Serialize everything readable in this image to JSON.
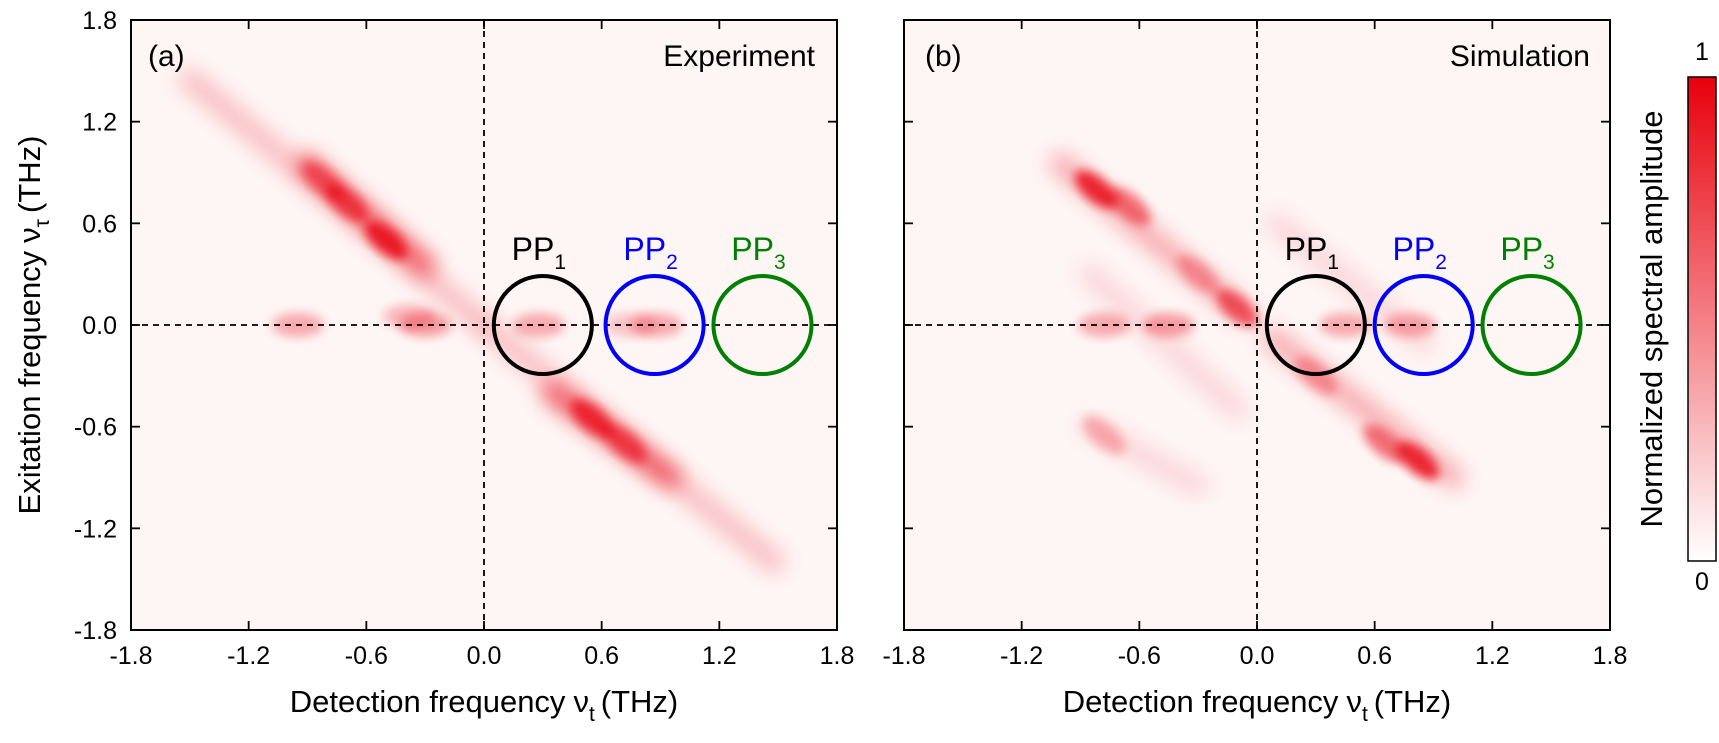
{
  "colors": {
    "signal": "#e8000b",
    "pp1": "#000000",
    "pp2": "#0000ff",
    "pp3": "#008000",
    "colorbar_low": "#ffffff",
    "colorbar_high": "#e8000b"
  },
  "chart_data": [
    {
      "type": "heatmap",
      "panel": "(a)",
      "title": "Experiment",
      "xlabel": "Detection frequency",
      "xlabel_symbol": "ν",
      "xlabel_sub": "t",
      "xlabel_unit": "(THz)",
      "ylabel": "Exitation frequency",
      "ylabel_symbol": "ν",
      "ylabel_sub": "τ",
      "ylabel_unit": "(THz)",
      "xlim": [
        -1.8,
        1.8
      ],
      "ylim": [
        -1.8,
        1.8
      ],
      "xticks": [
        "-1.8",
        "-1.2",
        "-0.6",
        "0.0",
        "0.6",
        "1.2",
        "1.8"
      ],
      "yticks": [
        "-1.8",
        "-1.2",
        "-0.6",
        "0.0",
        "0.6",
        "1.2",
        "1.8"
      ],
      "xtick_values": [
        -1.8,
        -1.2,
        -0.6,
        0.0,
        0.6,
        1.2,
        1.8
      ],
      "ytick_values": [
        -1.8,
        -1.2,
        -0.6,
        0.0,
        0.6,
        1.2,
        1.8
      ],
      "reference_lines": {
        "x": 0.0,
        "y": 0.0,
        "style": "dashed"
      },
      "streaks": [
        {
          "from": [
            -1.5,
            1.45
          ],
          "to": [
            -0.02,
            0.02
          ],
          "amplitude": 0.22
        },
        {
          "from": [
            -0.9,
            0.95
          ],
          "to": [
            -0.3,
            0.35
          ],
          "amplitude": 0.55
        },
        {
          "from": [
            0.02,
            -0.02
          ],
          "to": [
            1.48,
            -1.4
          ],
          "amplitude": 0.22
        },
        {
          "from": [
            0.35,
            -0.4
          ],
          "to": [
            0.95,
            -0.9
          ],
          "amplitude": 0.55
        }
      ],
      "peaks": [
        {
          "x": -0.7,
          "y": 0.72,
          "amplitude": 0.6
        },
        {
          "x": -0.5,
          "y": 0.5,
          "amplitude": 0.8
        },
        {
          "x": -0.82,
          "y": 0.85,
          "amplitude": 0.45
        },
        {
          "x": 0.55,
          "y": -0.55,
          "amplitude": 0.7
        },
        {
          "x": 0.72,
          "y": -0.7,
          "amplitude": 0.55
        },
        {
          "x": -0.95,
          "y": 0.0,
          "amplitude": 0.3
        },
        {
          "x": -0.3,
          "y": 0.0,
          "amplitude": 0.35
        },
        {
          "x": -0.38,
          "y": 0.05,
          "amplitude": 0.25
        },
        {
          "x": 0.28,
          "y": 0.0,
          "amplitude": 0.3
        },
        {
          "x": 0.88,
          "y": 0.0,
          "amplitude": 0.3
        },
        {
          "x": 0.75,
          "y": 0.0,
          "amplitude": 0.2
        }
      ],
      "annotations": [
        {
          "label": "PP",
          "sub": "1",
          "x": 0.3,
          "y": 0.0,
          "radius": 0.25,
          "color": "#000000"
        },
        {
          "label": "PP",
          "sub": "2",
          "x": 0.87,
          "y": 0.0,
          "radius": 0.25,
          "color": "#0000ff"
        },
        {
          "label": "PP",
          "sub": "3",
          "x": 1.42,
          "y": 0.0,
          "radius": 0.25,
          "color": "#008000"
        }
      ]
    },
    {
      "type": "heatmap",
      "panel": "(b)",
      "title": "Simulation",
      "xlabel": "Detection frequency",
      "xlabel_symbol": "ν",
      "xlabel_sub": "t",
      "xlabel_unit": "(THz)",
      "xlim": [
        -1.8,
        1.8
      ],
      "ylim": [
        -1.8,
        1.8
      ],
      "xticks": [
        "-1.8",
        "-1.2",
        "-0.6",
        "0.0",
        "0.6",
        "1.2",
        "1.8"
      ],
      "xtick_values": [
        -1.8,
        -1.2,
        -0.6,
        0.0,
        0.6,
        1.2,
        1.8
      ],
      "ytick_values": [
        -1.8,
        -1.2,
        -0.6,
        0.0,
        0.6,
        1.2,
        1.8
      ],
      "reference_lines": {
        "x": 0.0,
        "y": 0.0,
        "style": "dashed"
      },
      "streaks": [
        {
          "from": [
            -1.0,
            0.95
          ],
          "to": [
            -0.08,
            0.08
          ],
          "amplitude": 0.3
        },
        {
          "from": [
            -0.85,
            0.3
          ],
          "to": [
            -0.1,
            -0.5
          ],
          "amplitude": 0.12
        },
        {
          "from": [
            -0.85,
            -0.6
          ],
          "to": [
            -0.3,
            -0.95
          ],
          "amplitude": 0.12
        },
        {
          "from": [
            0.08,
            -0.08
          ],
          "to": [
            1.0,
            -0.9
          ],
          "amplitude": 0.3
        },
        {
          "from": [
            0.1,
            0.6
          ],
          "to": [
            0.85,
            -0.1
          ],
          "amplitude": 0.12
        },
        {
          "from": [
            -0.08,
            0.95
          ],
          "to": [
            -0.08,
            -0.75
          ],
          "amplitude": 0.2
        },
        {
          "from": [
            0.08,
            0.8
          ],
          "to": [
            0.08,
            -0.95
          ],
          "amplitude": 0.2
        }
      ],
      "peaks": [
        {
          "x": -0.82,
          "y": 0.8,
          "amplitude": 0.8
        },
        {
          "x": -0.65,
          "y": 0.7,
          "amplitude": 0.5
        },
        {
          "x": -0.1,
          "y": 0.1,
          "amplitude": 0.6
        },
        {
          "x": -0.3,
          "y": 0.3,
          "amplitude": 0.3
        },
        {
          "x": 0.82,
          "y": -0.8,
          "amplitude": 0.8
        },
        {
          "x": 0.65,
          "y": -0.7,
          "amplitude": 0.5
        },
        {
          "x": 0.3,
          "y": -0.3,
          "amplitude": 0.3
        },
        {
          "x": -0.78,
          "y": 0.0,
          "amplitude": 0.3
        },
        {
          "x": -0.45,
          "y": 0.0,
          "amplitude": 0.35
        },
        {
          "x": 0.45,
          "y": 0.0,
          "amplitude": 0.3
        },
        {
          "x": 0.78,
          "y": 0.0,
          "amplitude": 0.3
        },
        {
          "x": -0.78,
          "y": -0.65,
          "amplitude": 0.25
        }
      ],
      "annotations": [
        {
          "label": "PP",
          "sub": "1",
          "x": 0.3,
          "y": 0.0,
          "radius": 0.25,
          "color": "#000000"
        },
        {
          "label": "PP",
          "sub": "2",
          "x": 0.85,
          "y": 0.0,
          "radius": 0.25,
          "color": "#0000ff"
        },
        {
          "label": "PP",
          "sub": "3",
          "x": 1.4,
          "y": 0.0,
          "radius": 0.25,
          "color": "#008000"
        }
      ]
    }
  ],
  "colorbar": {
    "label": "Normalized spectral amplitude",
    "max_label": "1",
    "min_label": "0",
    "range": [
      0,
      1
    ]
  }
}
